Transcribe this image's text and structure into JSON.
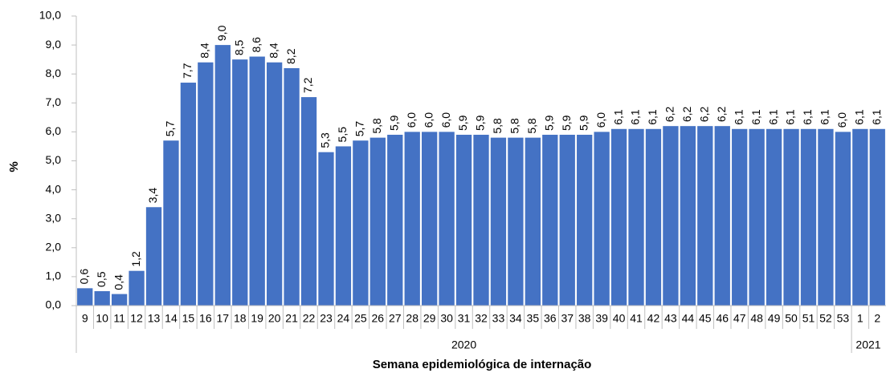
{
  "chart_data": {
    "type": "bar",
    "y_label": "%",
    "x_label": "Semana epidemiológica  de internação",
    "color": "#4472c4",
    "ylim": [
      0,
      10
    ],
    "yticks": [
      {
        "value": 0,
        "label": "0,0"
      },
      {
        "value": 1,
        "label": "1,0"
      },
      {
        "value": 2,
        "label": "2,0"
      },
      {
        "value": 3,
        "label": "3,0"
      },
      {
        "value": 4,
        "label": "4,0"
      },
      {
        "value": 5,
        "label": "5,0"
      },
      {
        "value": 6,
        "label": "6,0"
      },
      {
        "value": 7,
        "label": "7,0"
      },
      {
        "value": 8,
        "label": "8,0"
      },
      {
        "value": 9,
        "label": "9,0"
      },
      {
        "value": 10,
        "label": "10,0"
      }
    ],
    "x_groups": [
      {
        "label": "2020",
        "categories": [
          "9",
          "10",
          "11",
          "12",
          "13",
          "14",
          "15",
          "16",
          "17",
          "18",
          "19",
          "20",
          "21",
          "22",
          "23",
          "24",
          "25",
          "26",
          "27",
          "28",
          "29",
          "30",
          "31",
          "32",
          "33",
          "34",
          "35",
          "36",
          "37",
          "38",
          "39",
          "40",
          "41",
          "42",
          "43",
          "44",
          "45",
          "46",
          "47",
          "48",
          "49",
          "50",
          "51",
          "52",
          "53"
        ],
        "values": [
          0.6,
          0.5,
          0.4,
          1.2,
          3.4,
          5.7,
          7.7,
          8.4,
          9.0,
          8.5,
          8.6,
          8.4,
          8.2,
          7.2,
          5.3,
          5.5,
          5.7,
          5.8,
          5.9,
          6.0,
          6.0,
          6.0,
          5.9,
          5.9,
          5.8,
          5.8,
          5.8,
          5.9,
          5.9,
          5.9,
          6.0,
          6.1,
          6.1,
          6.1,
          6.2,
          6.2,
          6.2,
          6.2,
          6.1,
          6.1,
          6.1,
          6.1,
          6.1,
          6.1,
          6.0
        ],
        "value_labels": [
          "0,6",
          "0,5",
          "0,4",
          "1,2",
          "3,4",
          "5,7",
          "7,7",
          "8,4",
          "9,0",
          "8,5",
          "8,6",
          "8,4",
          "8,2",
          "7,2",
          "5,3",
          "5,5",
          "5,7",
          "5,8",
          "5,9",
          "6,0",
          "6,0",
          "6,0",
          "5,9",
          "5,9",
          "5,8",
          "5,8",
          "5,8",
          "5,9",
          "5,9",
          "5,9",
          "6,0",
          "6,1",
          "6,1",
          "6,1",
          "6,2",
          "6,2",
          "6,2",
          "6,2",
          "6,1",
          "6,1",
          "6,1",
          "6,1",
          "6,1",
          "6,1",
          "6,0"
        ]
      },
      {
        "label": "2021",
        "categories": [
          "1",
          "2"
        ],
        "values": [
          6.1,
          6.1
        ],
        "value_labels": [
          "6,1",
          "6,1"
        ]
      }
    ]
  }
}
